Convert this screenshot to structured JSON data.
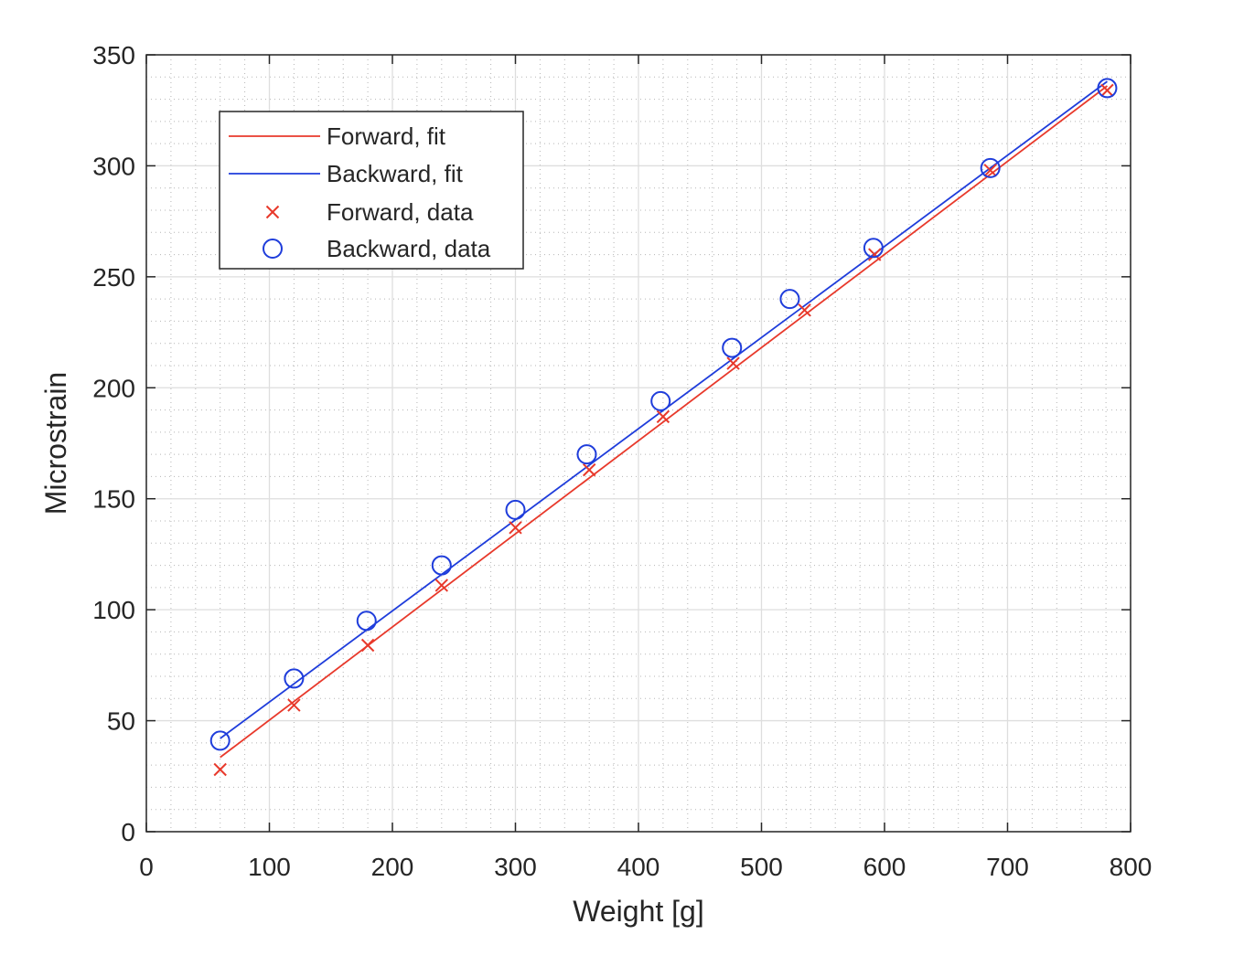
{
  "chart_data": {
    "type": "line",
    "title": "",
    "xlabel": "Weight [g]",
    "ylabel": "Microstrain",
    "xlim": [
      0,
      800
    ],
    "ylim": [
      0,
      350
    ],
    "xticks": [
      0,
      100,
      200,
      300,
      400,
      500,
      600,
      700,
      800
    ],
    "yticks": [
      0,
      50,
      100,
      150,
      200,
      250,
      300,
      350
    ],
    "grid": true,
    "minor_grid": true,
    "legend_position": "top-left",
    "legend": [
      {
        "label": "Forward, fit",
        "style": "line",
        "color": "#e8392b"
      },
      {
        "label": "Backward, fit",
        "style": "line",
        "color": "#1f3ddb"
      },
      {
        "label": "Forward, data",
        "style": "x-marker",
        "color": "#e8392b"
      },
      {
        "label": "Backward, data",
        "style": "circle-marker",
        "color": "#1f3ddb"
      }
    ],
    "series": [
      {
        "name": "Forward, fit",
        "kind": "fit-line",
        "color": "#e8392b",
        "x": [
          60,
          781
        ],
        "y": [
          33.5,
          336
        ]
      },
      {
        "name": "Backward, fit",
        "kind": "fit-line",
        "color": "#1f3ddb",
        "x": [
          60,
          781
        ],
        "y": [
          42,
          338
        ]
      },
      {
        "name": "Forward, data",
        "kind": "x-marker",
        "color": "#e8392b",
        "x": [
          60,
          120,
          180,
          240,
          300,
          360,
          420,
          477,
          535,
          592,
          686,
          781
        ],
        "y": [
          28,
          57,
          84,
          111,
          137,
          163,
          187,
          211,
          235,
          260,
          298,
          334
        ]
      },
      {
        "name": "Backward, data",
        "kind": "circle-marker",
        "color": "#1f3ddb",
        "x": [
          60,
          120,
          179,
          240,
          300,
          358,
          418,
          476,
          523,
          591,
          686,
          781
        ],
        "y": [
          41,
          69,
          95,
          120,
          145,
          170,
          194,
          218,
          240,
          263,
          299,
          335
        ]
      }
    ]
  }
}
